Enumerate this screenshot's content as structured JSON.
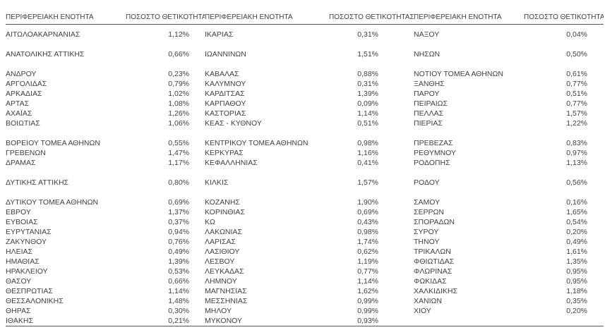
{
  "colors": {
    "text": "#3f3f3f",
    "rule_line": "#595959",
    "background": "#ffffff"
  },
  "table": {
    "header": {
      "region_label": "ΠΕΡΙΦΕΡΕΙΑΚΗ ΕΝΟΤΗΤΑ",
      "positivity_label": "ΠΟΣΟΣΤΟ ΘΕΤΙΚΟΤΗΤΑΣ"
    },
    "rows": [
      [
        "ΑΙΤΩΛΟΑΚΑΡΝΑΝΙΑΣ",
        "1,12%",
        "ΙΚΑΡΙΑΣ",
        "0,31%",
        "ΝΑΞΟΥ",
        "0,04%"
      ],
      [
        "",
        "",
        "",
        "",
        "",
        ""
      ],
      [
        "ΑΝΑΤΟΛΙΚΗΣ ΑΤΤΙΚΗΣ",
        "0,66%",
        "ΙΩΑΝΝΙΝΩΝ",
        "1,51%",
        "ΝΗΣΩΝ",
        "0,50%"
      ],
      [
        "",
        "",
        "",
        "",
        "",
        ""
      ],
      [
        "ΑΝΔΡΟΥ",
        "0,23%",
        "ΚΑΒΑΛΑΣ",
        "0,88%",
        "ΝΟΤΙΟΥ ΤΟΜΕΑ ΑΘΗΝΩΝ",
        "0,61%"
      ],
      [
        "ΑΡΓΟΛΙΔΑΣ",
        "0,79%",
        "ΚΑΛΥΜΝΟΥ",
        "0,31%",
        "ΞΑΝΘΗΣ",
        "0,77%"
      ],
      [
        "ΑΡΚΑΔΙΑΣ",
        "1,02%",
        "ΚΑΡΔΙΤΣΑΣ",
        "1,39%",
        "ΠΑΡΟΥ",
        "0,51%"
      ],
      [
        "ΑΡΤΑΣ",
        "1,08%",
        "ΚΑΡΠΑΘΟΥ",
        "0,09%",
        "ΠΕΙΡΑΙΩΣ",
        "0,77%"
      ],
      [
        "ΑΧΑΪΑΣ",
        "1,26%",
        "ΚΑΣΤΟΡΙΑΣ",
        "1,14%",
        "ΠΕΛΛΑΣ",
        "1,57%"
      ],
      [
        "ΒΟΙΩΤΙΑΣ",
        "1,06%",
        "ΚΕΑΣ - ΚΥΘΝΟΥ",
        "0,51%",
        "ΠΙΕΡΙΑΣ",
        "1,22%"
      ],
      [
        "",
        "",
        "",
        "",
        "",
        ""
      ],
      [
        "ΒΟΡΕΙΟΥ ΤΟΜΕΑ ΑΘΗΝΩΝ",
        "0,55%",
        "ΚΕΝΤΡΙΚΟΥ ΤΟΜΕΑ ΑΘΗΝΩΝ",
        "0,98%",
        "ΠΡΕΒΕΖΑΣ",
        "0,83%"
      ],
      [
        "ΓΡΕΒΕΝΩΝ",
        "1,47%",
        "ΚΕΡΚΥΡΑΣ",
        "1,16%",
        "ΡΕΘΥΜΝΟΥ",
        "0,97%"
      ],
      [
        "ΔΡΑΜΑΣ",
        "1,17%",
        "ΚΕΦΑΛΛΗΝΙΑΣ",
        "0,41%",
        "ΡΟΔΟΠΗΣ",
        "1,13%"
      ],
      [
        "",
        "",
        "",
        "",
        "",
        ""
      ],
      [
        "ΔΥΤΙΚΗΣ ΑΤΤΙΚΗΣ",
        "0,80%",
        "ΚΙΛΚΙΣ",
        "1,57%",
        "ΡΟΔΟΥ",
        "0,56%"
      ],
      [
        "",
        "",
        "",
        "",
        "",
        ""
      ],
      [
        "ΔΥΤΙΚΟΥ ΤΟΜΕΑ ΑΘΗΝΩΝ",
        "0,69%",
        "ΚΟΖΑΝΗΣ",
        "1,90%",
        "ΣΑΜΟΥ",
        "0,16%"
      ],
      [
        "ΕΒΡΟΥ",
        "1,37%",
        "ΚΟΡΙΝΘΙΑΣ",
        "0,69%",
        "ΣΕΡΡΩΝ",
        "1,65%"
      ],
      [
        "ΕΥΒΟΙΑΣ",
        "0,37%",
        "ΚΩ",
        "0,43%",
        "ΣΠΟΡΑΔΩΝ",
        "0,54%"
      ],
      [
        "ΕΥΡΥΤΑΝΙΑΣ",
        "0,94%",
        "ΛΑΚΩΝΙΑΣ",
        "0,98%",
        "ΣΥΡΟΥ",
        "0,20%"
      ],
      [
        "ΖΑΚΥΝΘΟΥ",
        "0,76%",
        "ΛΑΡΙΣΑΣ",
        "1,74%",
        "ΤΗΝΟΥ",
        "0,49%"
      ],
      [
        "ΗΛΕΙΑΣ",
        "0,49%",
        "ΛΑΣΙΘΙΟΥ",
        "0,62%",
        "ΤΡΙΚΑΛΩΝ",
        "1,61%"
      ],
      [
        "ΗΜΑΘΙΑΣ",
        "1,39%",
        "ΛΕΣΒΟΥ",
        "1,19%",
        "ΦΘΙΩΤΙΔΑΣ",
        "1,35%"
      ],
      [
        "ΗΡΑΚΛΕΙΟΥ",
        "0,53%",
        "ΛΕΥΚΑΔΑΣ",
        "0,77%",
        "ΦΛΩΡΙΝΑΣ",
        "0,95%"
      ],
      [
        "ΘΑΣΟΥ",
        "0,66%",
        "ΛΗΜΝΟΥ",
        "1,14%",
        "ΦΩΚΙΔΑΣ",
        "0,95%"
      ],
      [
        "ΘΕΣΠΡΩΤΙΑΣ",
        "1,14%",
        "ΜΑΓΝΗΣΙΑΣ",
        "1,62%",
        "ΧΑΛΚΙΔΙΚΗΣ",
        "1,18%"
      ],
      [
        "ΘΕΣΣΑΛΟΝΙΚΗΣ",
        "1,48%",
        "ΜΕΣΣΗΝΙΑΣ",
        "0,99%",
        "ΧΑΝΙΩΝ",
        "0,35%"
      ],
      [
        "ΘΗΡΑΣ",
        "0,30%",
        "ΜΗΛΟΥ",
        "0,99%",
        "ΧΙΟΥ",
        "0,20%"
      ],
      [
        "ΙΘΑΚΗΣ",
        "0,21%",
        "ΜΥΚΟΝΟΥ",
        "0,93%",
        "",
        ""
      ]
    ]
  }
}
